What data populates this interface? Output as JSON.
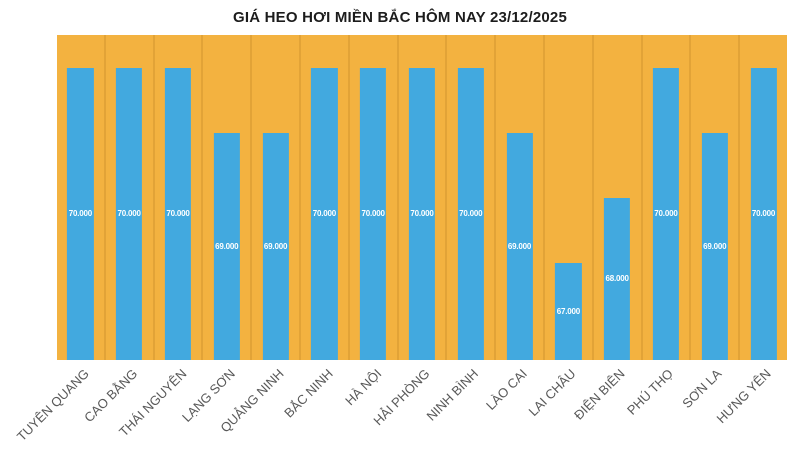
{
  "title": "GIÁ HEO HƠI MIỀN BẮC HÔM NAY 23/12/2025",
  "chart_data": {
    "type": "bar",
    "title": "GIÁ HEO HƠI MIỀN BẮC HÔM NAY 23/12/2025",
    "categories": [
      "TUYÊN QUANG",
      "CAO BẰNG",
      "THÁI NGUYÊN",
      "LẠNG SƠN",
      "QUẢNG NINH",
      "BẮC NINH",
      "HÀ NỘI",
      "HẢI PHÒNG",
      "NINH BÌNH",
      "LÀO CAI",
      "LAI CHÂU",
      "ĐIỆN BIÊN",
      "PHÚ THỌ",
      "SƠN LA",
      "HƯNG YÊN"
    ],
    "values": [
      70000,
      70000,
      70000,
      69000,
      69000,
      70000,
      70000,
      70000,
      70000,
      69000,
      67000,
      68000,
      70000,
      69000,
      70000
    ],
    "value_labels": [
      "70.000",
      "70.000",
      "70.000",
      "69.000",
      "69.000",
      "70.000",
      "70.000",
      "70.000",
      "70.000",
      "69.000",
      "67.000",
      "68.000",
      "70.000",
      "69.000",
      "70.000"
    ],
    "xlabel": "",
    "ylabel": "",
    "ylim": [
      65500,
      70500
    ],
    "grid": false,
    "legend": false,
    "colors": {
      "plot_background": "#F3B240",
      "column_separator": "#E2A337",
      "bar_fill": "#42A9DF",
      "value_label_text": "#ffffff",
      "axis_label_text": "#595959",
      "title_text": "#1c1c1c",
      "page_background": "#ffffff"
    }
  }
}
